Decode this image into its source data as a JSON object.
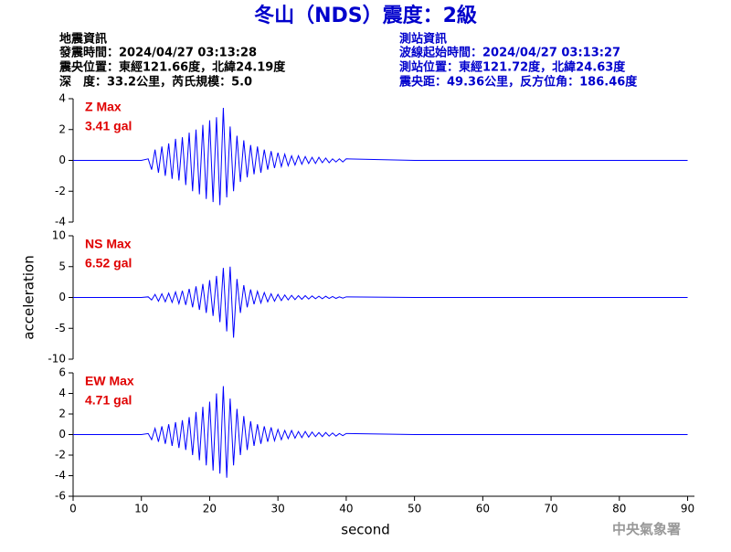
{
  "title": "冬山（NDS）震度：2級",
  "quake_info": [
    "地震資訊",
    "發震時間：2024/04/27 03:13:28",
    "震央位置：東經121.66度，北緯24.19度",
    "深　度：33.2公里，芮氏規模：5.0"
  ],
  "station_info": [
    "測站資訊",
    "波線起始時間：2024/04/27 03:13:27",
    "測站位置：東經121.72度，北緯24.63度",
    "震央距：49.36公里，反方位角：186.46度"
  ],
  "watermark": "中央氣象署",
  "chart_data": [
    {
      "type": "line",
      "annotations": [
        "Z Max",
        "3.41 gal"
      ],
      "color": "#0000ff",
      "xlim": [
        0,
        91
      ],
      "ylim": [
        -4,
        4
      ],
      "yticks": [
        -4,
        -2,
        0,
        2,
        4
      ],
      "x": [
        0,
        10,
        11,
        11.5,
        12,
        12.5,
        13,
        13.5,
        14,
        14.5,
        15,
        15.5,
        16,
        16.5,
        17,
        17.5,
        18,
        18.5,
        19,
        19.5,
        20,
        20.5,
        21,
        21.5,
        22,
        22.5,
        23,
        23.5,
        24,
        24.5,
        25,
        25.5,
        26,
        26.5,
        27,
        27.5,
        28,
        28.5,
        29,
        29.5,
        30,
        30.5,
        31,
        31.5,
        32,
        32.5,
        33,
        33.5,
        34,
        34.5,
        35,
        35.5,
        36,
        36.5,
        37,
        37.5,
        38,
        38.5,
        39,
        39.5,
        40,
        50,
        70,
        90
      ],
      "values": [
        0,
        0,
        0.1,
        -0.6,
        0.7,
        -0.8,
        0.9,
        -1.0,
        1.1,
        -1.2,
        1.4,
        -1.3,
        1.5,
        -1.6,
        1.8,
        -2.0,
        2.0,
        -2.2,
        2.3,
        -2.5,
        2.6,
        -2.7,
        2.8,
        -2.9,
        3.41,
        -2.4,
        2.2,
        -2.0,
        1.6,
        -1.4,
        1.3,
        -1.1,
        1.0,
        -0.9,
        0.9,
        -0.8,
        0.7,
        -0.6,
        0.6,
        -0.5,
        0.5,
        -0.4,
        0.4,
        -0.35,
        0.3,
        -0.3,
        0.3,
        -0.25,
        0.25,
        -0.2,
        0.2,
        -0.2,
        0.2,
        -0.15,
        0.15,
        -0.15,
        0.1,
        -0.1,
        0.1,
        -0.1,
        0.1,
        0,
        0,
        0
      ]
    },
    {
      "type": "line",
      "annotations": [
        "NS Max",
        "6.52 gal"
      ],
      "ylabel": "acceleration",
      "color": "#0000ff",
      "xlim": [
        0,
        91
      ],
      "ylim": [
        -10,
        10
      ],
      "yticks": [
        -10,
        -5,
        0,
        5,
        10
      ],
      "x": [
        0,
        10,
        11,
        11.5,
        12,
        12.5,
        13,
        13.5,
        14,
        14.5,
        15,
        15.5,
        16,
        16.5,
        17,
        17.5,
        18,
        18.5,
        19,
        19.5,
        20,
        20.5,
        21,
        21.5,
        22,
        22.5,
        23,
        23.5,
        24,
        24.5,
        25,
        25.5,
        26,
        26.5,
        27,
        27.5,
        28,
        28.5,
        29,
        29.5,
        30,
        30.5,
        31,
        31.5,
        32,
        32.5,
        33,
        33.5,
        34,
        34.5,
        35,
        35.5,
        36,
        36.5,
        37,
        37.5,
        38,
        38.5,
        39,
        39.5,
        40,
        50,
        70,
        90
      ],
      "values": [
        0,
        0,
        0.1,
        -0.4,
        0.5,
        -0.6,
        0.6,
        -0.7,
        0.7,
        -0.8,
        0.9,
        -1.0,
        1.1,
        -1.2,
        1.4,
        -1.6,
        1.8,
        -2.0,
        2.2,
        -2.5,
        2.8,
        -3.0,
        3.5,
        -4.0,
        4.8,
        -5.5,
        5.0,
        -6.52,
        3.0,
        -2.5,
        2.0,
        -1.6,
        1.3,
        -1.1,
        1.0,
        -0.9,
        0.8,
        -0.7,
        0.6,
        -0.6,
        0.5,
        -0.5,
        0.4,
        -0.4,
        0.35,
        -0.35,
        0.3,
        -0.3,
        0.3,
        -0.25,
        0.25,
        -0.2,
        0.2,
        -0.2,
        0.2,
        -0.15,
        0.15,
        -0.15,
        0.1,
        -0.1,
        0.1,
        0,
        0,
        0
      ]
    },
    {
      "type": "line",
      "annotations": [
        "EW Max",
        "4.71 gal"
      ],
      "xlabel": "second",
      "color": "#0000ff",
      "xlim": [
        0,
        91
      ],
      "ylim": [
        -6,
        6
      ],
      "yticks": [
        -6,
        -4,
        -2,
        0,
        2,
        4,
        6
      ],
      "xticks": [
        0,
        10,
        20,
        30,
        40,
        50,
        60,
        70,
        80,
        90
      ],
      "x": [
        0,
        10,
        11,
        11.5,
        12,
        12.5,
        13,
        13.5,
        14,
        14.5,
        15,
        15.5,
        16,
        16.5,
        17,
        17.5,
        18,
        18.5,
        19,
        19.5,
        20,
        20.5,
        21,
        21.5,
        22,
        22.5,
        23,
        23.5,
        24,
        24.5,
        25,
        25.5,
        26,
        26.5,
        27,
        27.5,
        28,
        28.5,
        29,
        29.5,
        30,
        30.5,
        31,
        31.5,
        32,
        32.5,
        33,
        33.5,
        34,
        34.5,
        35,
        35.5,
        36,
        36.5,
        37,
        37.5,
        38,
        38.5,
        39,
        39.5,
        40,
        50,
        70,
        90
      ],
      "values": [
        0,
        0,
        0.1,
        -0.5,
        0.6,
        -0.7,
        0.8,
        -0.9,
        1.0,
        -1.1,
        1.2,
        -1.3,
        1.4,
        -1.5,
        1.7,
        -2.0,
        2.2,
        -2.5,
        2.7,
        -3.0,
        3.2,
        -3.5,
        4.0,
        -3.8,
        4.71,
        -4.2,
        3.5,
        -3.0,
        2.5,
        -2.0,
        1.8,
        -1.5,
        1.3,
        -1.1,
        1.0,
        -0.9,
        0.8,
        -0.7,
        0.7,
        -0.6,
        0.5,
        -0.5,
        0.4,
        -0.4,
        0.4,
        -0.35,
        0.3,
        -0.3,
        0.3,
        -0.25,
        0.25,
        -0.2,
        0.2,
        -0.2,
        0.2,
        -0.15,
        0.15,
        -0.15,
        0.1,
        -0.1,
        0.1,
        0,
        0,
        0
      ]
    }
  ]
}
